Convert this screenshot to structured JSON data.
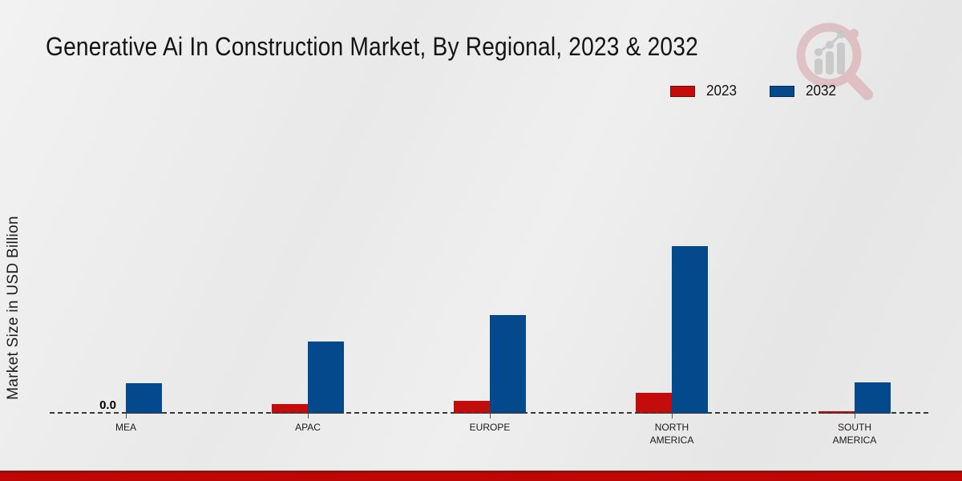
{
  "title": "Generative Ai In Construction Market, By Regional, 2023 & 2032",
  "y_axis_label": "Market Size in USD Billion",
  "legend": {
    "position": "top-right",
    "items": [
      {
        "label": "2023",
        "color": "#c40c0c"
      },
      {
        "label": "2032",
        "color": "#04498c"
      }
    ]
  },
  "chart_data": {
    "type": "bar",
    "categories": [
      "MEA",
      "APAC",
      "EUROPE",
      "NORTH AMERICA",
      "SOUTH AMERICA"
    ],
    "series": [
      {
        "name": "2023",
        "color": "#c40c0c",
        "values": [
          0.0,
          0.3,
          0.4,
          0.65,
          0.08
        ]
      },
      {
        "name": "2032",
        "color": "#04498c",
        "values": [
          0.95,
          2.25,
          3.05,
          5.2,
          0.96
        ]
      }
    ],
    "title": "Generative Ai In Construction Market, By Regional, 2023 & 2032",
    "xlabel": "",
    "ylabel": "Market Size in USD Billion",
    "ylim": [
      0,
      5.5
    ],
    "grid": false,
    "legend_position": "top-right",
    "baseline_style": "dashed-zero-line",
    "value_labels": [
      {
        "series": "2023",
        "category": "MEA",
        "text": "0.0"
      }
    ]
  },
  "colors": {
    "background": "#e9e9e9",
    "baseline": "#3a3a3a",
    "footer_bar": "#c00505",
    "footer_bar_edge": "#8e1212",
    "watermark_ring": "#d8a9ad",
    "watermark_gray": "#c7c7c8"
  },
  "watermark": {
    "name": "magnifier-bar-chart-logo"
  }
}
